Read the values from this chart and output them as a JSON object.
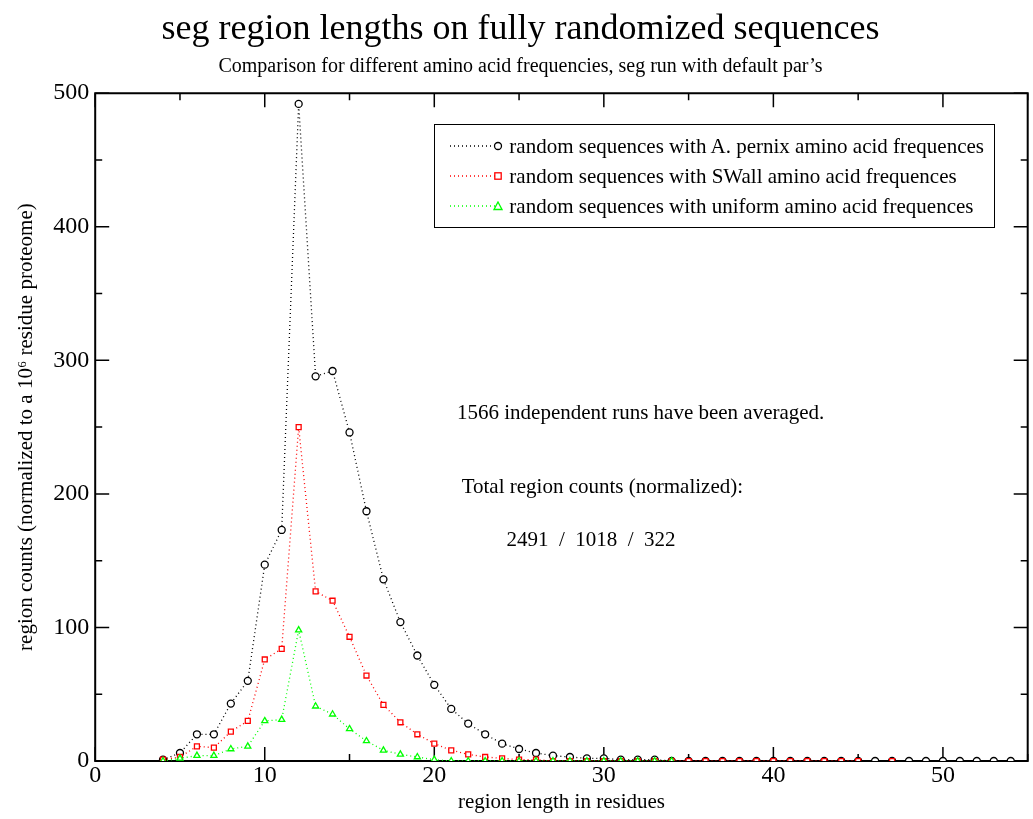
{
  "chart_data": {
    "type": "line",
    "title": "seg region lengths on fully randomized sequences",
    "subtitle": "Comparison for different amino acid frequencies, seg run with default par’s",
    "xlabel": "region length in residues",
    "ylabel": "region counts (normalized to a 10⁶ residue proteome)",
    "xlim": [
      0,
      55
    ],
    "xticks": [
      0,
      {
        "value": 5,
        "label": null
      },
      10,
      {
        "value": 15,
        "label": null
      },
      20,
      {
        "value": 25,
        "label": null
      },
      30,
      {
        "value": 35,
        "label": null
      },
      40,
      {
        "value": 45,
        "label": null
      },
      50,
      {
        "value": 55,
        "label": null
      }
    ],
    "ylim": [
      0,
      500
    ],
    "yticks": [
      0,
      {
        "value": 50,
        "label": null
      },
      100,
      {
        "value": 150,
        "label": null
      },
      200,
      {
        "value": 250,
        "label": null
      },
      300,
      {
        "value": 350,
        "label": null
      },
      400,
      {
        "value": 450,
        "label": null
      },
      500
    ],
    "grid": false,
    "legend": "top right",
    "line_style": "dotted",
    "series": [
      {
        "name": "random sequences with A. pernix amino acid frequences",
        "color": "#000000",
        "marker": "circle",
        "x": [
          4,
          5,
          6,
          7,
          8,
          9,
          10,
          11,
          12,
          13,
          14,
          15,
          16,
          17,
          18,
          19,
          20,
          21,
          22,
          23,
          24,
          25,
          26,
          27,
          28,
          29,
          30,
          31,
          32,
          33,
          34,
          35,
          36,
          37,
          38,
          39,
          40,
          41,
          42,
          43,
          44,
          45,
          46,
          47,
          48,
          49,
          50,
          51,
          52,
          53,
          54
        ],
        "values": [
          1,
          6,
          20,
          20,
          43,
          60,
          147,
          173,
          492,
          288,
          292,
          246,
          187,
          136,
          104,
          79,
          57,
          39,
          28,
          20,
          13,
          9,
          6,
          4,
          3,
          2,
          2,
          1,
          1,
          1,
          0,
          0,
          0,
          0,
          0,
          0,
          0,
          0,
          0,
          0,
          0,
          0,
          0,
          0,
          0,
          0,
          0,
          0,
          0,
          0,
          0
        ]
      },
      {
        "name": "random sequences with SWall amino acid frequences",
        "color": "#ff0000",
        "marker": "square",
        "x": [
          4,
          5,
          6,
          7,
          8,
          9,
          10,
          11,
          12,
          13,
          14,
          15,
          16,
          17,
          18,
          19,
          20,
          21,
          22,
          23,
          24,
          25,
          26,
          27,
          28,
          29,
          30,
          31,
          32,
          33,
          34,
          35,
          36,
          37,
          38,
          39,
          40,
          41,
          42,
          43,
          44,
          45,
          46,
          47
        ],
        "values": [
          1,
          3,
          11,
          10,
          22,
          30,
          76,
          84,
          250,
          127,
          120,
          93,
          64,
          42,
          29,
          20,
          13,
          8,
          5,
          3,
          2,
          1,
          1,
          0,
          0,
          0,
          0,
          0,
          0,
          0,
          0,
          0,
          0,
          0,
          0,
          0,
          0,
          0,
          0,
          0,
          0,
          0,
          null,
          0
        ]
      },
      {
        "name": "random sequences with uniform amino acid frequences",
        "color": "#00ff00",
        "marker": "triangle",
        "x": [
          4,
          5,
          6,
          7,
          8,
          9,
          10,
          11,
          12,
          13,
          14,
          15,
          16,
          17,
          18,
          19,
          20,
          21,
          22,
          23,
          24,
          25,
          26,
          27,
          28,
          29,
          30,
          31,
          32,
          33,
          34
        ],
        "values": [
          0,
          2,
          4,
          4,
          9,
          11,
          30,
          31,
          98,
          41,
          35,
          24,
          15,
          8,
          5,
          3,
          1,
          0,
          0,
          0,
          0,
          0,
          0,
          0,
          0,
          0,
          0,
          0,
          0,
          0,
          0
        ]
      }
    ],
    "annotations": [
      "1566 independent runs have been averaged.",
      "Total region counts (normalized):",
      "2491  /  1018  /  322"
    ]
  }
}
